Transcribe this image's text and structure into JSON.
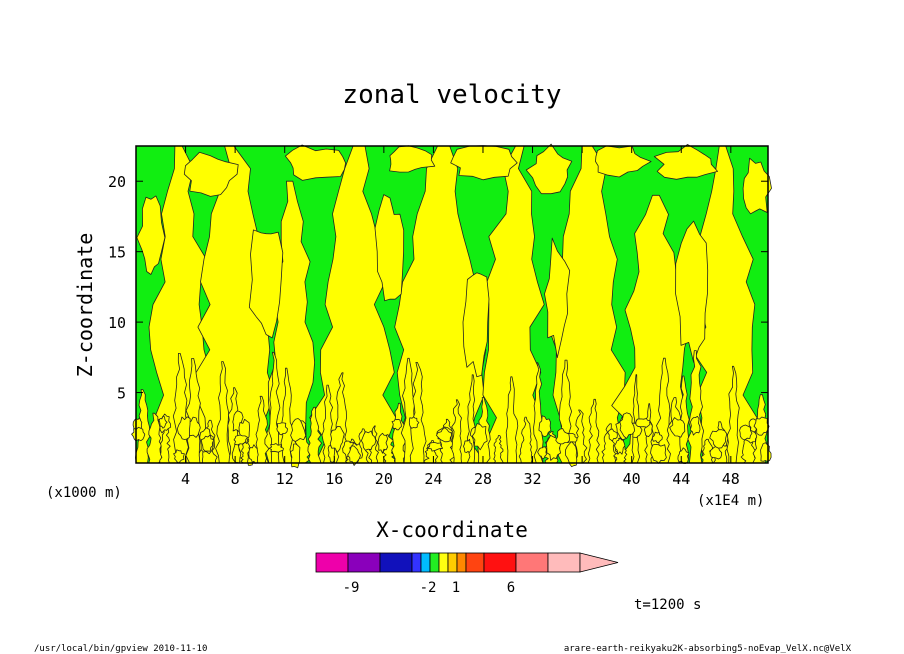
{
  "chart_data": {
    "type": "heatmap",
    "title": "zonal velocity",
    "xlabel": "X-coordinate",
    "ylabel": "Z-coordinate",
    "x_unit_left": "(x1000 m)",
    "x_unit_right": "(x1E4 m)",
    "xlim": [
      0,
      51
    ],
    "ylim": [
      0,
      22.5
    ],
    "x_ticks": [
      4,
      8,
      12,
      16,
      20,
      24,
      28,
      32,
      36,
      40,
      44,
      48
    ],
    "x_tick_labels": [
      "4",
      "8",
      "12",
      "16",
      "20",
      "24",
      "28",
      "32",
      "36",
      "40",
      "44",
      "48"
    ],
    "y_ticks": [
      5,
      10,
      15,
      20
    ],
    "y_tick_labels": [
      "5",
      "10",
      "15",
      "20"
    ],
    "grid": false,
    "dominant_fields": [
      {
        "range": "0 to 1",
        "color": "#11ee11"
      },
      {
        "range": "1 to 2",
        "color": "#ffff00"
      }
    ],
    "colorbar": {
      "position": "bottom",
      "colors": [
        "#ee00aa",
        "#8a00bb",
        "#1111bb",
        "#3333ff",
        "#00bbff",
        "#22ee22",
        "#ffff11",
        "#ffcc00",
        "#ff8800",
        "#ff4411",
        "#ff1111",
        "#ff7777",
        "#ffbbbb"
      ],
      "labels": [
        "-9",
        "-2",
        "1",
        "6"
      ]
    },
    "annotation": "t=1200 s"
  },
  "footer": {
    "left": "/usr/local/bin/gpview  2010-11-10",
    "right": "arare-earth-reikyaku2K-absorbing5-noEvap_VelX.nc@VelX"
  }
}
